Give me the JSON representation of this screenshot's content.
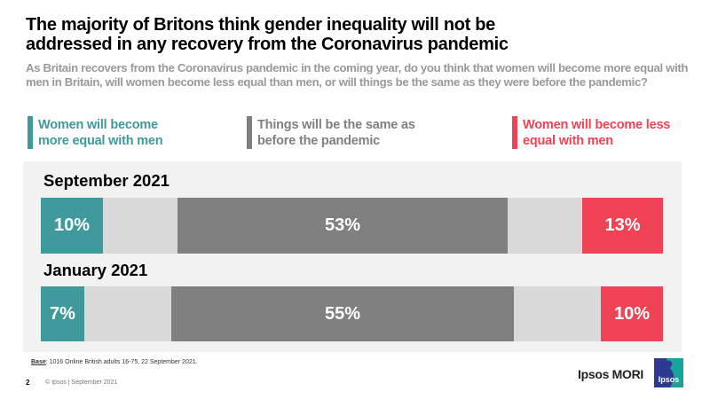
{
  "title": "The majority of Britons think gender inequality will not be addressed in any recovery from the Coronavirus pandemic",
  "subtitle": "As Britain recovers from the Coronavirus pandemic in the coming year, do you think that women will become more equal with men in Britain, will women become less equal than men, or will things be the same as they were before the pandemic?",
  "colors": {
    "more_equal": "#40999a",
    "same": "#808080",
    "less_equal": "#f04356",
    "remainder": "#d9d9d9",
    "panel": "#f2f2f2"
  },
  "chart_data": {
    "type": "bar",
    "orientation": "horizontal-stacked",
    "title": "The majority of Britons think gender inequality will not be addressed in any recovery from the Coronavirus pandemic",
    "categories": [
      "September 2021",
      "January 2021"
    ],
    "legend": [
      "Women will become more equal with men",
      "Things will be the same as before the pandemic",
      "Women will become less equal with men"
    ],
    "legend_position": "top",
    "series": [
      {
        "name": "Women will become more equal with men",
        "values": [
          10,
          7
        ],
        "labels": [
          "10%",
          "7%"
        ]
      },
      {
        "name": "Things will be the same as before the pandemic",
        "values": [
          53,
          55
        ],
        "labels": [
          "53%",
          "55%"
        ]
      },
      {
        "name": "Women will become less equal with men",
        "values": [
          13,
          10
        ],
        "labels": [
          "13%",
          "10%"
        ]
      }
    ],
    "xlim": [
      0,
      100
    ]
  },
  "legend": {
    "more_equal": "Women will become more equal with men",
    "same": "Things will be the same as before the pandemic",
    "less_equal": "Women will become less equal with men"
  },
  "footer": {
    "base_label": "Base",
    "base_text": ": 1016 Online British adults 16-75, 22 September 2021.",
    "page_number": "2",
    "copyright": "© Ipsos | September 2021",
    "brand": "Ipsos MORI",
    "logo_text": "Ipsos"
  }
}
